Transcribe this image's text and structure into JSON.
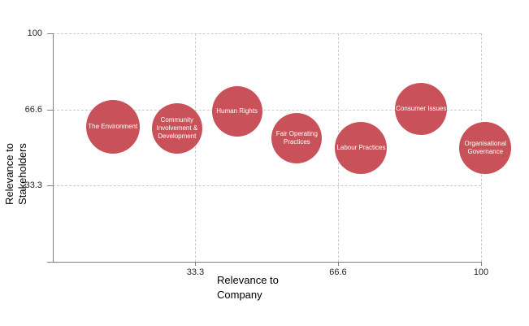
{
  "chart_data": {
    "type": "scatter",
    "title": "",
    "xlabel": "Relevance to\nCompany",
    "ylabel": "Relevance to\nStakeholders",
    "xlim": [
      0,
      100
    ],
    "ylim": [
      0,
      100
    ],
    "grid": "dashed",
    "legend_position": "none",
    "x_ticks": [
      {
        "value": 33.3,
        "label": "33.3"
      },
      {
        "value": 66.6,
        "label": "66.6"
      },
      {
        "value": 100,
        "label": "100"
      }
    ],
    "y_ticks": [
      {
        "value": 33.3,
        "label": "33.3"
      },
      {
        "value": 66.6,
        "label": "66.6"
      },
      {
        "value": 100,
        "label": "100"
      }
    ],
    "points": [
      {
        "label": "The Environment",
        "label_lines": [
          "The Environment"
        ],
        "x": 14,
        "y": 59,
        "radius_px": 33
      },
      {
        "label": "Community Involvement & Development",
        "label_lines": [
          "Community",
          "Involvement &",
          "Development"
        ],
        "x": 29,
        "y": 58.5,
        "radius_px": 31
      },
      {
        "label": "Human Rights",
        "label_lines": [
          "Human Rights"
        ],
        "x": 43,
        "y": 66,
        "radius_px": 31
      },
      {
        "label": "Fair Operating Practices",
        "label_lines": [
          "Fair Operating",
          "Practices"
        ],
        "x": 57,
        "y": 54,
        "radius_px": 31
      },
      {
        "label": "Labour Practices",
        "label_lines": [
          "Labour Practices"
        ],
        "x": 72,
        "y": 50,
        "radius_px": 32
      },
      {
        "label": "Consumer Issues",
        "label_lines": [
          "Consumer Issues"
        ],
        "x": 86,
        "y": 67,
        "radius_px": 32
      },
      {
        "label": "Organisational Governance",
        "label_lines": [
          "Organisational",
          "Governance"
        ],
        "x": 101,
        "y": 50,
        "radius_px": 32
      }
    ],
    "colors": {
      "bubble_fill": "#C9515A",
      "bubble_text": "#FFFFFF",
      "axis_line": "#808080",
      "gridline": "#CCCCCC",
      "tick_text": "#262626",
      "axis_title_text": "#000000",
      "background": "#FFFFFF"
    }
  }
}
